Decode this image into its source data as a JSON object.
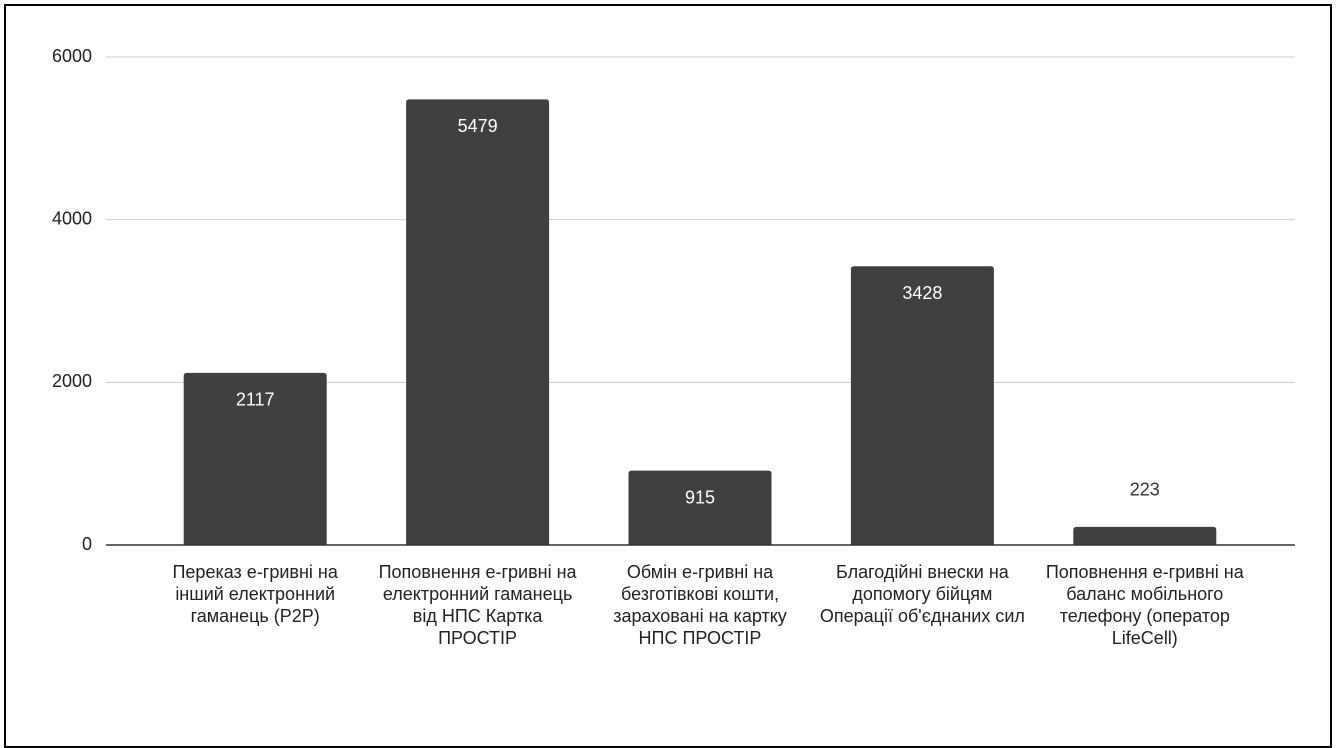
{
  "chart_data": {
    "type": "bar",
    "categories": [
      "Переказ е-гривні на інший електронний гаманець (P2P)",
      "Поповнення е-гривні на електронний гаманець від НПС Картка ПРОСТІР",
      "Обмін е-гривні на безготівкові кошти, зараховані на картку НПС ПРОСТІР",
      "Благодійні внески на допомогу бійцям Операції об'єднаних сил",
      "Поповнення е-гривні на баланс мобільного телефону (оператор LifeCell)"
    ],
    "values": [
      2117,
      5479,
      915,
      3428,
      223
    ],
    "color": "#404040",
    "ylim": [
      0,
      6000
    ],
    "yticks": [
      0,
      2000,
      4000,
      6000
    ],
    "grid": true
  }
}
